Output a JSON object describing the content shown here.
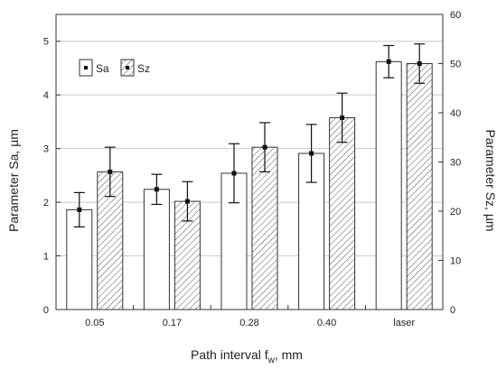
{
  "chart_data": {
    "type": "bar",
    "categories": [
      "0.05",
      "0.17",
      "0.28",
      "0.40",
      "laser"
    ],
    "series": [
      {
        "name": "Sa",
        "axis": "left",
        "pattern": "none",
        "values": [
          1.86,
          2.24,
          2.54,
          2.91,
          4.62
        ],
        "errors": [
          0.32,
          0.28,
          0.55,
          0.54,
          0.3
        ]
      },
      {
        "name": "Sz",
        "axis": "right",
        "pattern": "hatched",
        "values": [
          28,
          22,
          33,
          39,
          50
        ],
        "errors": [
          5,
          4,
          5,
          5,
          4
        ]
      }
    ],
    "xlabel_main": "Path interval f",
    "xlabel_sub": "w",
    "xlabel_tail": ", mm",
    "ylabel_left": "Parameter Sa, µm",
    "ylabel_right": "Parameter Sz, µm",
    "ylim_left": [
      0,
      5.5
    ],
    "ylim_right": [
      0,
      60
    ],
    "yticks_left": [
      "0",
      "1",
      "2",
      "3",
      "4",
      "5"
    ],
    "yticks_right": [
      "0",
      "10",
      "20",
      "30",
      "40",
      "50",
      "60"
    ],
    "grid": "horizontal",
    "legend": "top-left",
    "colors": {
      "bar_fill": "#ffffff",
      "bar_stroke": "#333333",
      "grid": "#cccccc",
      "hatch": "#555555"
    }
  }
}
